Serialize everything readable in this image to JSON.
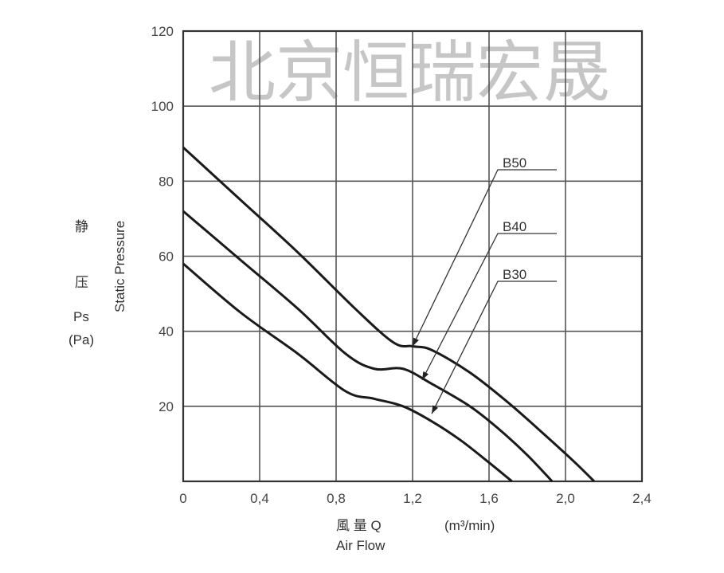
{
  "chart_data": {
    "type": "line",
    "title": "",
    "xlabel_cn": "風 量 Q",
    "xlabel_unit": "(m³/min)",
    "xlabel_en": "Air Flow",
    "ylabel_cn_1": "静",
    "ylabel_cn_2": "压",
    "ylabel_symbol": "Ps",
    "ylabel_unit": "(Pa)",
    "ylabel_en": "Static Pressure",
    "xlim": [
      0,
      2.4
    ],
    "ylim": [
      0,
      120
    ],
    "x_ticks": [
      "0",
      "0.4",
      "0.8",
      "1.2",
      "1.6",
      "2.0",
      "2.4"
    ],
    "y_ticks": [
      "20",
      "40",
      "60",
      "80",
      "100",
      "120"
    ],
    "grid": true,
    "watermark": "北京恒瑞宏晟",
    "series": [
      {
        "name": "B50",
        "x": [
          0,
          0.3,
          0.6,
          0.9,
          1.1,
          1.2,
          1.3,
          1.5,
          1.7,
          1.9,
          2.05,
          2.15
        ],
        "y": [
          89,
          75,
          61,
          46,
          37,
          36,
          35,
          29,
          21,
          12,
          5,
          0
        ],
        "arrow_to": [
          1.2,
          36
        ]
      },
      {
        "name": "B40",
        "x": [
          0,
          0.3,
          0.6,
          0.85,
          1.0,
          1.15,
          1.3,
          1.5,
          1.65,
          1.8,
          1.93
        ],
        "y": [
          72,
          59,
          46,
          34,
          30,
          30,
          26,
          20,
          14,
          7,
          0
        ],
        "arrow_to": [
          1.25,
          27
        ]
      },
      {
        "name": "B30",
        "x": [
          0,
          0.3,
          0.6,
          0.85,
          1.0,
          1.15,
          1.3,
          1.45,
          1.6,
          1.72
        ],
        "y": [
          58,
          45,
          34,
          24,
          22,
          20,
          16,
          11,
          5,
          0
        ],
        "arrow_to": [
          1.3,
          18
        ]
      }
    ]
  }
}
